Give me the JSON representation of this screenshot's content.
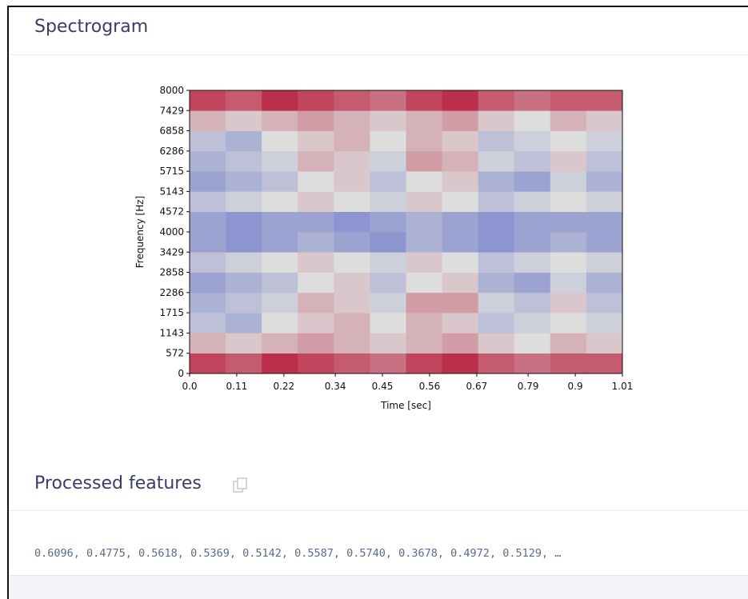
{
  "header": {
    "title": "Spectrogram"
  },
  "chart_data": {
    "type": "heatmap",
    "xlabel": "Time [sec]",
    "ylabel": "Frequency [Hz]",
    "xlim": [
      0,
      1.01
    ],
    "xticks": [
      {
        "value": 0,
        "label": "0.0"
      },
      0.11,
      0.22,
      0.34,
      0.45,
      0.56,
      0.67,
      0.79,
      0.9,
      1.01
    ],
    "ylim": [
      0,
      8000
    ],
    "yticks": [
      0,
      572,
      1143,
      1715,
      2286,
      2858,
      3429,
      4000,
      4572,
      5143,
      5715,
      6286,
      6858,
      7429,
      8000
    ],
    "colormap": "coolwarm",
    "zlim": [
      0,
      1
    ],
    "values": [
      [
        0.85,
        0.8,
        0.9,
        0.85,
        0.8,
        0.75,
        0.85,
        0.9,
        0.8,
        0.75,
        0.8,
        0.8
      ],
      [
        0.6,
        0.55,
        0.6,
        0.65,
        0.6,
        0.55,
        0.6,
        0.65,
        0.55,
        0.5,
        0.6,
        0.55
      ],
      [
        0.4,
        0.35,
        0.5,
        0.55,
        0.6,
        0.5,
        0.6,
        0.55,
        0.4,
        0.45,
        0.5,
        0.45
      ],
      [
        0.35,
        0.4,
        0.45,
        0.6,
        0.55,
        0.45,
        0.65,
        0.65,
        0.45,
        0.4,
        0.55,
        0.4
      ],
      [
        0.3,
        0.35,
        0.4,
        0.5,
        0.55,
        0.4,
        0.5,
        0.55,
        0.35,
        0.3,
        0.45,
        0.35
      ],
      [
        0.4,
        0.45,
        0.5,
        0.55,
        0.5,
        0.45,
        0.55,
        0.5,
        0.4,
        0.45,
        0.5,
        0.45
      ],
      [
        0.3,
        0.25,
        0.3,
        0.35,
        0.3,
        0.25,
        0.35,
        0.3,
        0.25,
        0.3,
        0.35,
        0.3
      ],
      [
        0.3,
        0.25,
        0.3,
        0.3,
        0.25,
        0.3,
        0.35,
        0.3,
        0.25,
        0.3,
        0.3,
        0.3
      ],
      [
        0.4,
        0.45,
        0.5,
        0.55,
        0.5,
        0.45,
        0.55,
        0.5,
        0.4,
        0.45,
        0.5,
        0.45
      ],
      [
        0.3,
        0.35,
        0.4,
        0.5,
        0.55,
        0.4,
        0.5,
        0.55,
        0.35,
        0.3,
        0.45,
        0.35
      ],
      [
        0.35,
        0.4,
        0.45,
        0.6,
        0.55,
        0.45,
        0.65,
        0.6,
        0.45,
        0.4,
        0.55,
        0.4
      ],
      [
        0.4,
        0.35,
        0.5,
        0.55,
        0.6,
        0.5,
        0.6,
        0.55,
        0.4,
        0.45,
        0.5,
        0.45
      ],
      [
        0.6,
        0.55,
        0.6,
        0.65,
        0.6,
        0.55,
        0.6,
        0.65,
        0.55,
        0.5,
        0.6,
        0.55
      ],
      [
        0.85,
        0.8,
        0.9,
        0.85,
        0.8,
        0.75,
        0.85,
        0.9,
        0.8,
        0.75,
        0.8,
        0.8
      ]
    ]
  },
  "features": {
    "title": "Processed features",
    "values": "0.6096, 0.4775, 0.5618, 0.5369, 0.5142, 0.5587, 0.5740, 0.3678, 0.4972, 0.5129, …"
  }
}
